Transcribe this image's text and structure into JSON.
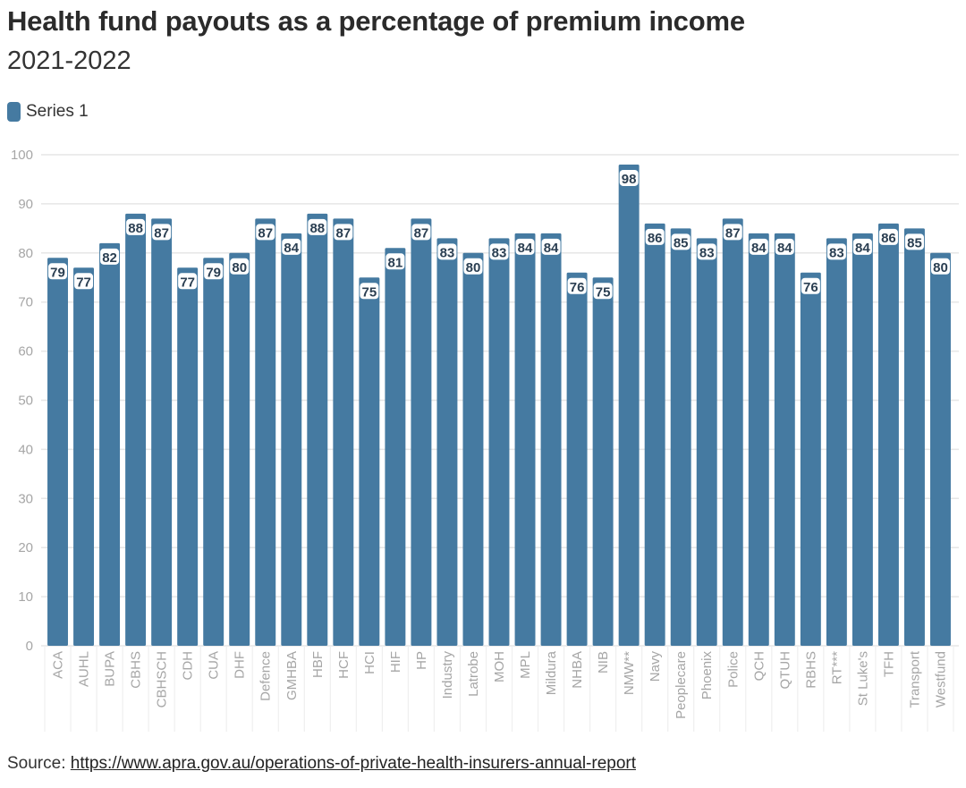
{
  "header": {
    "title": "Health fund payouts as a percentage of premium income",
    "subtitle": "2021-2022"
  },
  "legend": {
    "label": "Series 1"
  },
  "footer": {
    "source_label": "Source: ",
    "source_link": "https://www.apra.gov.au/operations-of-private-health-insurers-annual-report"
  },
  "colors": {
    "bar": "#457aa1",
    "grid": "#e6e6e6",
    "axis_text": "#a6a6a6"
  },
  "chart_data": {
    "type": "bar",
    "title": "Health fund payouts as a percentage of premium income",
    "subtitle": "2021-2022",
    "legend_position": "top-left",
    "grid": true,
    "ylim": [
      0,
      100
    ],
    "yticks": [
      0,
      10,
      20,
      30,
      40,
      50,
      60,
      70,
      80,
      90,
      100
    ],
    "categories": [
      "ACA",
      "AUHL",
      "BUPA",
      "CBHS",
      "CBHSCH",
      "CDH",
      "CUA",
      "DHF",
      "Defence",
      "GMHBA",
      "HBF",
      "HCF",
      "HCI",
      "HIF",
      "HP",
      "Industry",
      "Latrobe",
      "MOH",
      "MPL",
      "Mildura",
      "NHBA",
      "NIB",
      "NMW**",
      "Navy",
      "Peoplecare",
      "Phoenix",
      "Police",
      "QCH",
      "QTUH",
      "RBHS",
      "RT***",
      "St Luke's",
      "TFH",
      "Transport",
      "Westfund"
    ],
    "series": [
      {
        "name": "Series 1",
        "values": [
          79,
          77,
          82,
          88,
          87,
          77,
          79,
          80,
          87,
          84,
          88,
          87,
          75,
          81,
          87,
          83,
          80,
          83,
          84,
          84,
          76,
          75,
          98,
          86,
          85,
          83,
          87,
          84,
          84,
          76,
          83,
          84,
          86,
          85,
          80
        ]
      }
    ]
  }
}
